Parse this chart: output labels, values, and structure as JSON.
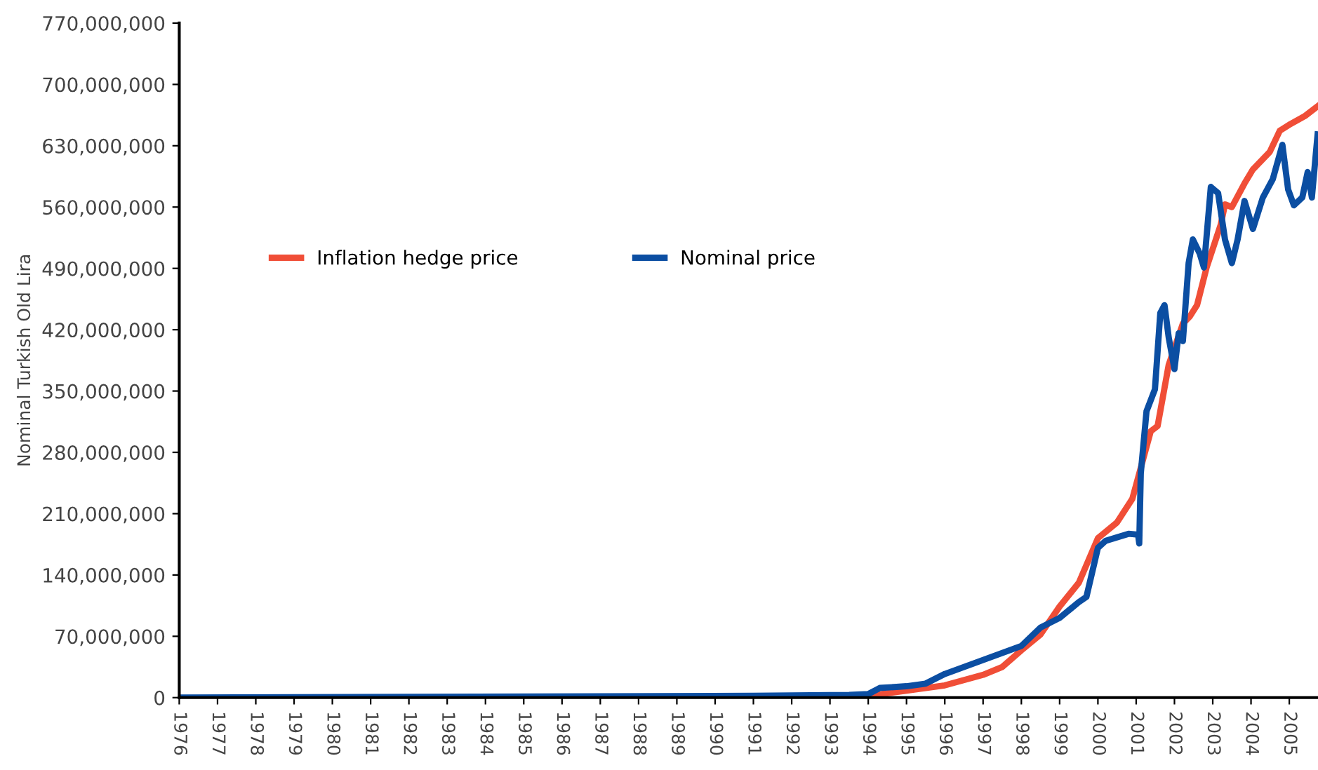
{
  "chart_data": {
    "type": "line",
    "ylabel": "Nominal Turkish Old Lira",
    "xlim": [
      1976,
      2005.75
    ],
    "xticks": [
      1976,
      1977,
      1978,
      1979,
      1980,
      1981,
      1982,
      1983,
      1984,
      1985,
      1986,
      1987,
      1988,
      1989,
      1990,
      1991,
      1992,
      1993,
      1994,
      1995,
      1996,
      1997,
      1998,
      1999,
      2000,
      2001,
      2002,
      2003,
      2004,
      2005
    ],
    "ylim": [
      0,
      770000000
    ],
    "yticks": [
      {
        "value": 0,
        "label": "0"
      },
      {
        "value": 70000000,
        "label": "70,000,000"
      },
      {
        "value": 140000000,
        "label": "140,000,000"
      },
      {
        "value": 210000000,
        "label": "210,000,000"
      },
      {
        "value": 280000000,
        "label": "280,000,000"
      },
      {
        "value": 350000000,
        "label": "350,000,000"
      },
      {
        "value": 420000000,
        "label": "420,000,000"
      },
      {
        "value": 490000000,
        "label": "490,000,000"
      },
      {
        "value": 560000000,
        "label": "560,000,000"
      },
      {
        "value": 630000000,
        "label": "630,000,000"
      },
      {
        "value": 700000000,
        "label": "700,000,000"
      },
      {
        "value": 770000000,
        "label": "770,000,000"
      }
    ],
    "grid": false,
    "legend": "center",
    "marker": "none",
    "line_style": "solid",
    "series": [
      {
        "name": "Inflation hedge price",
        "color": "#f04e37",
        "x": [
          1993,
          1994,
          1995,
          1996,
          1997,
          1997.5,
          1998,
          1998.5,
          1999,
          1999.5,
          2000,
          2000.5,
          2000.9,
          2001.38,
          2001.56,
          2001.85,
          2002.22,
          2002.4,
          2002.59,
          2002.84,
          2003.21,
          2003.32,
          2003.5,
          2003.83,
          2004.05,
          2004.49,
          2004.75,
          2005.04,
          2005.41,
          2005.74
        ],
        "values": [
          1000000,
          2000000,
          8000000,
          14000000,
          26000000,
          35000000,
          54000000,
          72000000,
          104000000,
          131000000,
          182000000,
          200000000,
          227000000,
          304000000,
          310000000,
          380000000,
          427000000,
          435000000,
          448000000,
          491000000,
          540000000,
          563000000,
          560000000,
          587000000,
          603000000,
          623000000,
          647000000,
          655000000,
          664000000,
          675000000
        ]
      },
      {
        "name": "Nominal price",
        "color": "#0b4ea2",
        "x": [
          1976,
          1991,
          1993.5,
          1994,
          1994.3,
          1995,
          1995.5,
          1996,
          1996.5,
          1997,
          1997.5,
          1998,
          1998.5,
          1999,
          1999.5,
          1999.7,
          2000,
          2000.2,
          2000.8,
          2001.05,
          2001.08,
          2001.12,
          2001.27,
          2001.49,
          2001.63,
          2001.74,
          2001.85,
          2002.0,
          2002.11,
          2002.22,
          2002.37,
          2002.48,
          2002.66,
          2002.77,
          2002.95,
          2003.14,
          2003.32,
          2003.5,
          2003.65,
          2003.83,
          2004.05,
          2004.31,
          2004.57,
          2004.82,
          2004.97,
          2005.12,
          2005.34,
          2005.48,
          2005.59,
          2005.74
        ],
        "values": [
          0,
          2000000,
          3000000,
          4000000,
          11000000,
          13000000,
          16000000,
          27000000,
          35000000,
          43000000,
          51000000,
          59000000,
          80000000,
          91000000,
          109000000,
          115000000,
          171000000,
          179000000,
          187000000,
          186000000,
          176000000,
          256000000,
          327000000,
          352000000,
          439000000,
          448000000,
          411000000,
          375000000,
          416000000,
          407000000,
          496000000,
          523000000,
          507000000,
          491000000,
          583000000,
          576000000,
          523000000,
          496000000,
          523000000,
          567000000,
          535000000,
          571000000,
          592000000,
          631000000,
          580000000,
          562000000,
          571000000,
          600000000,
          571000000,
          643000000
        ]
      }
    ]
  }
}
